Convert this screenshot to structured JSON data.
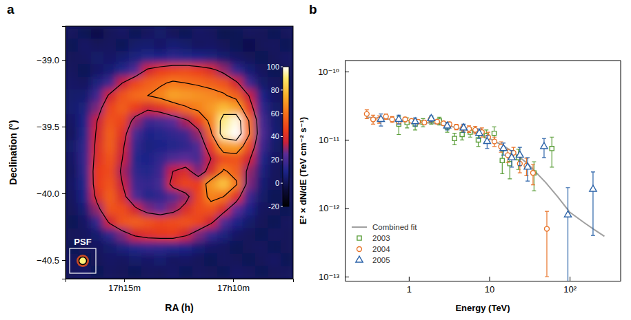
{
  "chart_data": [
    {
      "type": "heatmap",
      "panel_label": "a",
      "x_label": "RA (h)",
      "y_label": "Declination (°)",
      "xlim": [
        17.2949,
        17.1208
      ],
      "xticks": [
        {
          "value": 17.25,
          "label": "17h15m"
        },
        {
          "value": 17.1667,
          "label": "17h10m"
        }
      ],
      "ylim": [
        -40.639,
        -38.747
      ],
      "yticks": [
        {
          "value": -39.0,
          "label": "−39.0"
        },
        {
          "value": -39.5,
          "label": "−39.5"
        },
        {
          "value": -40.0,
          "label": "−40.0"
        },
        {
          "value": -40.5,
          "label": "−40.5"
        }
      ],
      "cells": [
        [
          2,
          0,
          -3,
          1,
          3,
          0,
          2,
          4,
          1,
          0,
          3,
          2,
          -1,
          0,
          2,
          1,
          0,
          2
        ],
        [
          0,
          3,
          1,
          2,
          0,
          4,
          5,
          3,
          6,
          4,
          2,
          3,
          1,
          0,
          -2,
          1,
          2,
          0
        ],
        [
          1,
          2,
          4,
          3,
          5,
          8,
          12,
          10,
          14,
          12,
          10,
          8,
          5,
          3,
          1,
          0,
          1,
          3
        ],
        [
          2,
          0,
          3,
          6,
          12,
          22,
          38,
          45,
          48,
          50,
          46,
          40,
          30,
          15,
          6,
          2,
          0,
          1
        ],
        [
          3,
          2,
          8,
          18,
          35,
          48,
          55,
          58,
          62,
          60,
          58,
          55,
          52,
          38,
          18,
          4,
          2,
          0
        ],
        [
          4,
          5,
          18,
          38,
          52,
          58,
          60,
          65,
          72,
          70,
          68,
          66,
          62,
          55,
          35,
          10,
          3,
          1
        ],
        [
          5,
          8,
          28,
          48,
          55,
          45,
          38,
          42,
          50,
          58,
          64,
          70,
          78,
          72,
          45,
          15,
          4,
          2
        ],
        [
          3,
          10,
          35,
          52,
          48,
          30,
          18,
          20,
          25,
          32,
          45,
          65,
          92,
          98,
          60,
          20,
          5,
          1
        ],
        [
          2,
          12,
          38,
          55,
          42,
          20,
          10,
          12,
          15,
          18,
          30,
          58,
          95,
          100,
          62,
          22,
          6,
          2
        ],
        [
          4,
          14,
          40,
          55,
          38,
          15,
          8,
          10,
          12,
          14,
          22,
          45,
          70,
          72,
          50,
          18,
          4,
          0
        ],
        [
          3,
          15,
          42,
          52,
          35,
          12,
          10,
          15,
          22,
          25,
          20,
          35,
          50,
          52,
          38,
          12,
          3,
          1
        ],
        [
          2,
          14,
          45,
          50,
          32,
          14,
          12,
          18,
          35,
          40,
          28,
          40,
          62,
          55,
          30,
          8,
          2,
          0
        ],
        [
          3,
          12,
          45,
          52,
          35,
          18,
          15,
          20,
          40,
          48,
          45,
          70,
          80,
          62,
          28,
          6,
          1,
          2
        ],
        [
          2,
          10,
          40,
          55,
          40,
          22,
          12,
          15,
          22,
          30,
          48,
          65,
          60,
          42,
          18,
          4,
          0,
          1
        ],
        [
          1,
          6,
          30,
          52,
          50,
          38,
          28,
          25,
          30,
          40,
          50,
          52,
          40,
          25,
          10,
          2,
          1,
          0
        ],
        [
          0,
          3,
          15,
          38,
          52,
          55,
          52,
          48,
          50,
          52,
          48,
          38,
          22,
          10,
          4,
          1,
          0,
          2
        ],
        [
          1,
          2,
          5,
          14,
          28,
          38,
          42,
          44,
          45,
          38,
          28,
          16,
          8,
          3,
          1,
          0,
          2,
          1
        ],
        [
          0,
          1,
          2,
          4,
          8,
          12,
          15,
          14,
          12,
          10,
          6,
          3,
          2,
          0,
          1,
          2,
          0,
          1
        ],
        [
          2,
          0,
          1,
          3,
          2,
          4,
          3,
          5,
          2,
          3,
          1,
          0,
          2,
          1,
          0,
          1,
          3,
          0
        ],
        [
          1,
          3,
          0,
          2,
          1,
          0,
          2,
          1,
          3,
          0,
          2,
          1,
          0,
          3,
          2,
          0,
          1,
          2
        ]
      ],
      "colorbar": {
        "range": [
          -20,
          100
        ],
        "ticks": [
          -20,
          0,
          20,
          40,
          60,
          80,
          100
        ]
      },
      "contour_levels": [
        35,
        60,
        85
      ],
      "psf_label": "PSF"
    },
    {
      "type": "scatter",
      "panel_label": "b",
      "x_label": "Energy (TeV)",
      "y_label": "E² × dN/dE (TeV cm⁻² s⁻¹)",
      "log": true,
      "xlim": [
        0.16,
        430
      ],
      "xticks": [
        1,
        10,
        {
          "value": 100,
          "label": "10²"
        }
      ],
      "ylim": [
        8.7e-14,
        1.45e-10
      ],
      "yticks": [
        {
          "value": 1e-13,
          "label": "10⁻¹³"
        },
        {
          "value": 1e-12,
          "label": "10⁻¹²"
        },
        {
          "value": 1e-11,
          "label": "10⁻¹¹"
        },
        {
          "value": 1e-10,
          "label": "10⁻¹⁰"
        }
      ],
      "legend": "lower left",
      "series": [
        {
          "name": "Combined fit",
          "type": "line",
          "color": "#a0a0a0",
          "line_style": "solid",
          "x": [
            0.3,
            0.5,
            1,
            2,
            3,
            5,
            7,
            10,
            15,
            20,
            30,
            50,
            70,
            100,
            150,
            200,
            270
          ],
          "values": [
            2.15e-11,
            2.05e-11,
            1.9e-11,
            1.75e-11,
            1.62e-11,
            1.42e-11,
            1.25e-11,
            1.05e-11,
            8.2e-12,
            6.6e-12,
            4.5e-12,
            2.4e-12,
            1.5e-12,
            8.8e-13,
            6.2e-13,
            4.9e-13,
            3.9e-13
          ]
        },
        {
          "name": "2003",
          "type": "scatter",
          "color": "#5b9e3a",
          "marker": "square",
          "x": [
            0.75,
            0.95,
            1.2,
            1.5,
            1.9,
            2.4,
            3.0,
            3.7,
            4.6,
            5.8,
            7.3,
            9.2,
            11.5,
            14.5,
            18,
            23,
            36,
            60
          ],
          "values": [
            1.7e-11,
            1.8e-11,
            1.7e-11,
            1.8e-11,
            1.95e-11,
            1.9e-11,
            1.55e-11,
            1.05e-11,
            1.2e-11,
            1.3e-11,
            1e-11,
            1.15e-11,
            1.25e-11,
            5e-12,
            4.5e-12,
            5.5e-12,
            3.3e-12,
            7.5e-12
          ],
          "errors": [
            5e-12,
            3e-12,
            3e-12,
            2.5e-12,
            2.5e-12,
            2.5e-12,
            2.5e-12,
            2e-12,
            2e-12,
            2e-12,
            2e-12,
            2.5e-12,
            3e-12,
            1.8e-12,
            1.8e-12,
            1.8e-12,
            1.5e-12,
            3.5e-12
          ]
        },
        {
          "name": "2004",
          "type": "scatter",
          "color": "#e8742a",
          "marker": "circle",
          "x": [
            0.3,
            0.36,
            0.43,
            0.52,
            0.62,
            0.75,
            0.9,
            1.08,
            1.3,
            1.56,
            1.87,
            2.25,
            2.7,
            3.2,
            3.9,
            4.7,
            5.6,
            6.7,
            8.1,
            9.7,
            11.6,
            14,
            17,
            20,
            24,
            29,
            35,
            52
          ],
          "values": [
            2.4e-11,
            2e-11,
            2e-11,
            2.2e-11,
            2e-11,
            1.85e-11,
            2e-11,
            1.9e-11,
            1.85e-11,
            1.8e-11,
            2e-11,
            1.85e-11,
            1.75e-11,
            1.7e-11,
            1.55e-11,
            1.5e-11,
            1.45e-11,
            1.4e-11,
            1.3e-11,
            1.1e-11,
            9.5e-12,
            8e-12,
            6e-12,
            6.5e-12,
            4.5e-12,
            4.2e-12,
            3.3e-12,
            5e-13
          ],
          "errors": [
            3.5e-12,
            3e-12,
            2.5e-12,
            2e-12,
            2e-12,
            1.5e-12,
            1.5e-12,
            1.2e-12,
            1.2e-12,
            1.2e-12,
            1.2e-12,
            1.2e-12,
            1.2e-12,
            1.3e-12,
            1.4e-12,
            1.5e-12,
            1.6e-12,
            1.8e-12,
            2e-12,
            2e-12,
            1.5e-12,
            1.4e-12,
            1.3e-12,
            1.3e-12,
            1.2e-12,
            1.2e-12,
            1.1e-12,
            4e-13
          ]
        },
        {
          "name": "2005",
          "type": "scatter",
          "color": "#2a62a8",
          "marker": "triangle",
          "x": [
            0.45,
            0.75,
            1.2,
            1.9,
            3.0,
            4.8,
            7.5,
            9.4,
            15,
            19,
            24,
            30,
            48,
            95,
            195
          ],
          "values": [
            2e-11,
            2e-11,
            1.85e-11,
            2.05e-11,
            1.6e-11,
            1.5e-11,
            1.25e-11,
            9.5e-12,
            7.5e-12,
            5.5e-12,
            6e-12,
            4e-12,
            8e-12,
            8e-13,
            1.9e-12
          ],
          "errors": [
            4e-12,
            3e-12,
            2.5e-12,
            2e-12,
            2e-12,
            2e-12,
            2e-12,
            2e-12,
            1.5e-12,
            1.5e-12,
            1.8e-12,
            1.5e-12,
            2.5e-12,
            1.2e-12,
            1.5e-12
          ]
        }
      ]
    }
  ]
}
